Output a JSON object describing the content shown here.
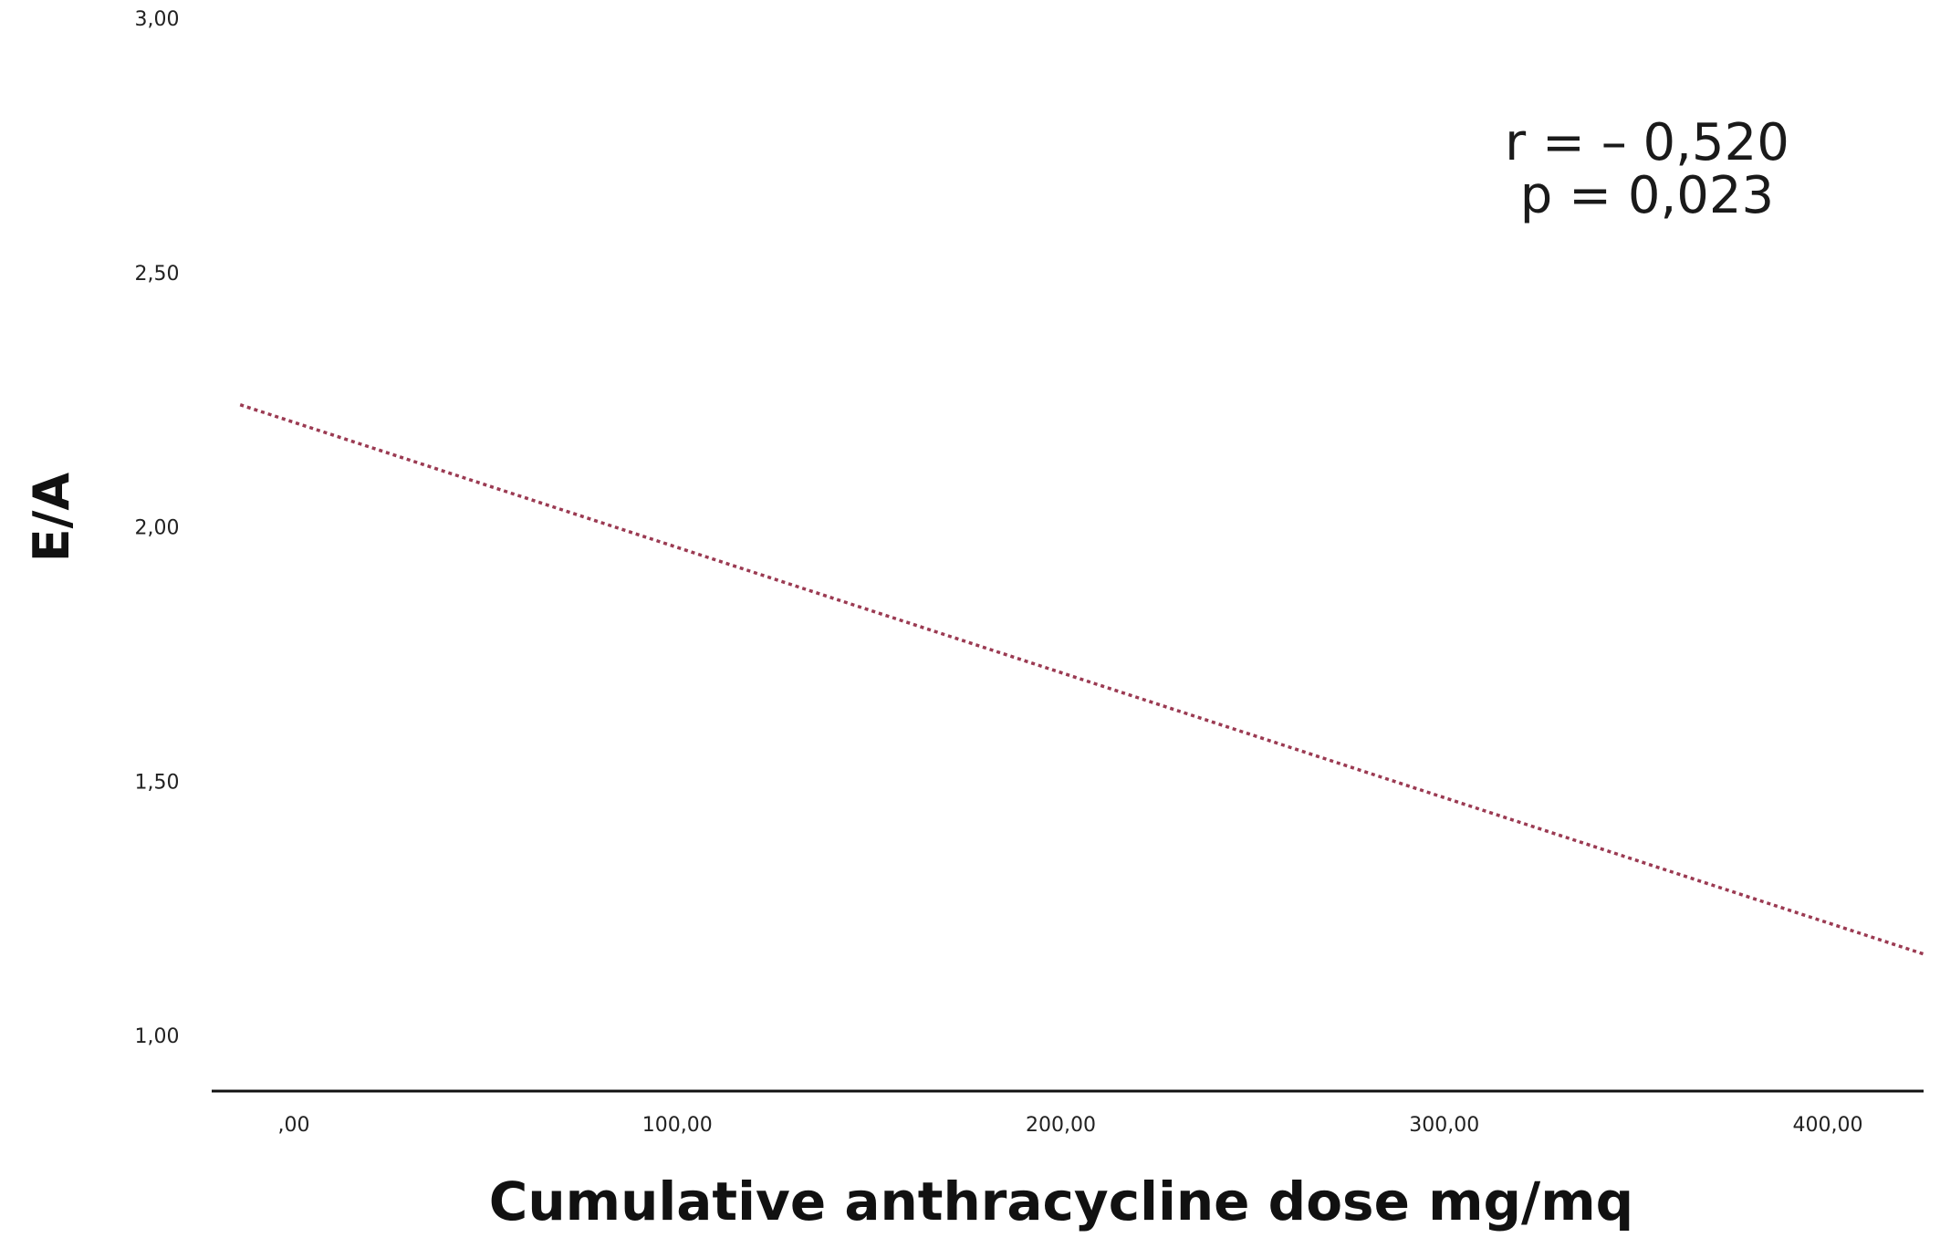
{
  "chart_data": {
    "type": "line",
    "title": "",
    "xlabel": "Cumulative anthracycline dose mg/mq",
    "ylabel": "E/A",
    "x_ticks": [
      ",00",
      "100,00",
      "200,00",
      "300,00",
      "400,00"
    ],
    "x_tick_values": [
      0,
      100,
      200,
      300,
      400
    ],
    "y_ticks": [
      "1,00",
      "1,50",
      "2,00",
      "2,50",
      "3,00"
    ],
    "y_tick_values": [
      1.0,
      1.5,
      2.0,
      2.5,
      3.0
    ],
    "xlim": [
      -14,
      425
    ],
    "ylim": [
      0.87,
      3.02
    ],
    "grid": false,
    "series": [
      {
        "line_style": "dotted",
        "color": "#9b3a52",
        "x": [
          -14,
          425
        ],
        "y": [
          2.24,
          1.16
        ]
      }
    ],
    "annotations": [
      "r = – 0,520",
      "p = 0,023"
    ]
  }
}
